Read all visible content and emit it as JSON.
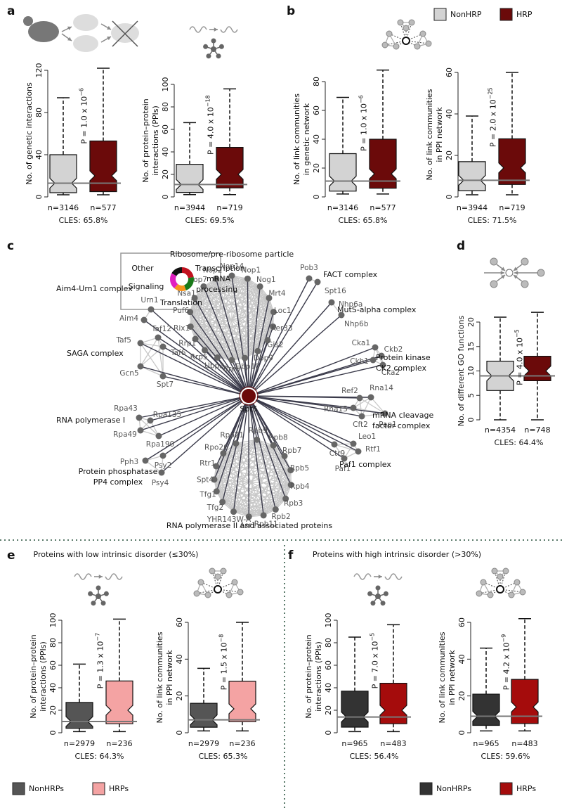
{
  "panel_letters": [
    "a",
    "b",
    "c",
    "d",
    "e",
    "f"
  ],
  "panel_titles": [
    "Proteins with low intrinsic disorder (≤30%)",
    "Proteins with high intrinsic disorder (>30%)"
  ],
  "legends": [
    {
      "items": [
        {
          "label": "NonHRP",
          "color": "#d3d3d3"
        },
        {
          "label": "HRP",
          "color": "#6b0a0a"
        }
      ]
    },
    {
      "items": [
        {
          "label": "NonHRPs",
          "color": "#555555"
        },
        {
          "label": "HRPs",
          "color": "#f4a3a3"
        }
      ]
    },
    {
      "items": [
        {
          "label": "NonHRPs",
          "color": "#333333"
        },
        {
          "label": "HRPs",
          "color": "#a50c0c"
        }
      ]
    }
  ],
  "chart_data": [
    {
      "type": "box",
      "ylabel": [
        "No. of genetic interactions"
      ],
      "ylim": [
        0,
        120
      ],
      "yticks": [
        0,
        40,
        80,
        120
      ],
      "categories": [
        "n=3146",
        "n=577"
      ],
      "boxes": [
        {
          "color": "#d3d3d3",
          "whislo": 2,
          "q1": 4,
          "med": 13,
          "q3": 40,
          "whishi": 94
        },
        {
          "color": "#6b0a0a",
          "whislo": 2,
          "q1": 5,
          "med": 20,
          "q3": 53,
          "whishi": 122
        }
      ],
      "p_value": {
        "text": "P = 1.0 x 10",
        "exponent": "−6"
      },
      "footer": "CLES: 65.8%"
    },
    {
      "type": "box",
      "ylabel": [
        "No. of protein–protein",
        "interactions (PPIs)"
      ],
      "ylim": [
        0,
        100
      ],
      "yticks": [
        0,
        20,
        40,
        60,
        80,
        100
      ],
      "categories": [
        "n=3944",
        "n=719"
      ],
      "boxes": [
        {
          "color": "#d3d3d3",
          "whislo": 2,
          "q1": 4,
          "med": 11,
          "q3": 29,
          "whishi": 66
        },
        {
          "color": "#6b0a0a",
          "whislo": 2,
          "q1": 8,
          "med": 20,
          "q3": 44,
          "whishi": 96
        }
      ],
      "p_value": {
        "text": "P = 4.0 x 10",
        "exponent": "−18"
      },
      "footer": "CLES: 69.5%"
    },
    {
      "type": "box",
      "ylabel": [
        "No. of link communities",
        "in genetic network"
      ],
      "ylim": [
        0,
        80
      ],
      "yticks": [
        0,
        20,
        40,
        60,
        80
      ],
      "categories": [
        "n=3146",
        "n=577"
      ],
      "boxes": [
        {
          "color": "#d3d3d3",
          "whislo": 2,
          "q1": 4,
          "med": 11,
          "q3": 30,
          "whishi": 69
        },
        {
          "color": "#6b0a0a",
          "whislo": 2,
          "q1": 6,
          "med": 16,
          "q3": 40,
          "whishi": 88
        }
      ],
      "p_value": {
        "text": "P = 1.0 x 10",
        "exponent": "−6"
      },
      "footer": "CLES: 65.8%"
    },
    {
      "type": "box",
      "ylabel": [
        "No. of link communities",
        "in PPI network"
      ],
      "ylim": [
        0,
        60
      ],
      "yticks": [
        0,
        20,
        40,
        60
      ],
      "categories": [
        "n=3944",
        "n=719"
      ],
      "boxes": [
        {
          "color": "#d3d3d3",
          "whislo": 1,
          "q1": 3,
          "med": 8,
          "q3": 17,
          "whishi": 39
        },
        {
          "color": "#6b0a0a",
          "whislo": 1,
          "q1": 6,
          "med": 14,
          "q3": 28,
          "whishi": 60
        }
      ],
      "p_value": {
        "text": "P = 2.0 x 10",
        "exponent": "−25"
      },
      "footer": "CLES: 71.5%"
    },
    {
      "type": "box",
      "ylabel": [
        "No. of different GO functions"
      ],
      "ylim": [
        0,
        20
      ],
      "yticks": [
        0,
        5,
        10,
        15,
        20
      ],
      "categories": [
        "n=4354",
        "n=748"
      ],
      "boxes": [
        {
          "color": "#d3d3d3",
          "whislo": 0,
          "q1": 6,
          "med": 9,
          "q3": 12,
          "whishi": 21
        },
        {
          "color": "#6b0a0a",
          "whislo": 0,
          "q1": 8,
          "med": 10,
          "q3": 13,
          "whishi": 22
        }
      ],
      "p_value": {
        "text": "P = 4.0 x 10",
        "exponent": "−5"
      },
      "footer": "CLES: 64.4%"
    },
    {
      "type": "box",
      "ylabel": [
        "No. of protein–protein",
        "interactions (PPIs)"
      ],
      "ylim": [
        0,
        100
      ],
      "yticks": [
        0,
        20,
        40,
        60,
        80,
        100
      ],
      "categories": [
        "n=2979",
        "n=236"
      ],
      "boxes": [
        {
          "color": "#555555",
          "whislo": 1,
          "q1": 4,
          "med": 10,
          "q3": 27,
          "whishi": 61
        },
        {
          "color": "#f4a3a3",
          "whislo": 1,
          "q1": 8,
          "med": 20,
          "q3": 46,
          "whishi": 101
        }
      ],
      "p_value": {
        "text": "P = 1.3 x 10",
        "exponent": "−7"
      },
      "footer": "CLES: 64.3%"
    },
    {
      "type": "box",
      "ylabel": [
        "No. of link communities",
        "in PPI network"
      ],
      "ylim": [
        0,
        60
      ],
      "yticks": [
        0,
        20,
        40,
        60
      ],
      "categories": [
        "n=2979",
        "n=236"
      ],
      "boxes": [
        {
          "color": "#555555",
          "whislo": 1,
          "q1": 3,
          "med": 7,
          "q3": 16,
          "whishi": 35
        },
        {
          "color": "#f4a3a3",
          "whislo": 1,
          "q1": 6,
          "med": 13,
          "q3": 28,
          "whishi": 60
        }
      ],
      "p_value": {
        "text": "P = 1.5 x 10",
        "exponent": "−8"
      },
      "footer": "CLES: 65.3%"
    },
    {
      "type": "box",
      "ylabel": [
        "No. of protein–protein",
        "interactions (PPIs)"
      ],
      "ylim": [
        0,
        100
      ],
      "yticks": [
        0,
        20,
        40,
        60,
        80,
        100
      ],
      "categories": [
        "n=965",
        "n=483"
      ],
      "boxes": [
        {
          "color": "#333333",
          "whislo": 1,
          "q1": 5,
          "med": 14,
          "q3": 37,
          "whishi": 85
        },
        {
          "color": "#a50c0c",
          "whislo": 1,
          "q1": 8,
          "med": 20,
          "q3": 44,
          "whishi": 96
        }
      ],
      "p_value": {
        "text": "P = 7.0 x 10",
        "exponent": "−5"
      },
      "footer": "CLES: 56.4%"
    },
    {
      "type": "box",
      "ylabel": [
        "No. of link communities",
        "in PPI network"
      ],
      "ylim": [
        0,
        60
      ],
      "yticks": [
        0,
        20,
        40,
        60
      ],
      "categories": [
        "n=965",
        "n=483"
      ],
      "boxes": [
        {
          "color": "#333333",
          "whislo": 1,
          "q1": 4,
          "med": 9,
          "q3": 21,
          "whishi": 46
        },
        {
          "color": "#a50c0c",
          "whislo": 1,
          "q1": 5,
          "med": 14,
          "q3": 29,
          "whishi": 62
        }
      ],
      "p_value": {
        "text": "P = 4.2 x 10",
        "exponent": "−9"
      },
      "footer": "CLES: 59.6%"
    }
  ],
  "network": {
    "legend": [
      {
        "label": "Other",
        "color": "#111111"
      },
      {
        "label": "Transcription",
        "color": "#c1121f"
      },
      {
        "label": [
          "mRNA",
          "processing"
        ],
        "color": "#1a7a1a"
      },
      {
        "label": "Translation",
        "color": "#f7941d"
      },
      {
        "label": "Signaling",
        "color": "#e020c0"
      }
    ],
    "center": "Spt5",
    "groups": [
      {
        "label": [
          "Ribosome/pre-ribosome particle"
        ],
        "color": "#f7941d",
        "nodes": [
          "Nop14",
          "Nop1",
          "Nog1",
          "Mrt4",
          "Loc1",
          "Ker33",
          "Gis2",
          "Dbp9",
          "Dbp10",
          "Bre5",
          "Ubp3",
          "Rrp5",
          "Rrp1",
          "Rix1",
          "Puf6",
          "Nsa1",
          "Nop7",
          "Nop2"
        ]
      },
      {
        "label": [
          "FACT complex"
        ],
        "color": "#c1121f",
        "nodes": [
          "Pob3",
          "Spt16"
        ]
      },
      {
        "label": [
          "MutS-alpha complex"
        ],
        "color": "#c1121f",
        "nodes": [
          "Nhp6a",
          "Nhp6b"
        ]
      },
      {
        "label": [
          "Protein kinase",
          "CK2 complex"
        ],
        "color": "#e020c0",
        "nodes": [
          "Cka1",
          "Ckb2",
          "Ckb1",
          "Cka2"
        ]
      },
      {
        "label": [
          "mRNA cleavage",
          "factor complex"
        ],
        "color": "#1a7a1a",
        "nodes": [
          "Ref2",
          "Rna14",
          "Rna15",
          "Cft2",
          "Pap1"
        ]
      },
      {
        "label": [
          "Paf1 complex"
        ],
        "color": "#c1121f",
        "nodes": [
          "Ctr9",
          "Leo1",
          "Rtf1",
          "Paf1"
        ]
      },
      {
        "label": [
          "RNA polymerase II and associated proteins"
        ],
        "color": "#c1121f",
        "nodes": [
          "Rpb9",
          "Rpb8",
          "Rpb7",
          "Rpb5",
          "Rpb4",
          "Rpb3",
          "Rpb2",
          "Rpb11",
          "Asr1",
          "YHR143W-A",
          "Tfg2",
          "Tfg1",
          "Spt4",
          "Rtr1",
          "Rpo26",
          "Rpo21"
        ]
      },
      {
        "label": [
          "Protein phosphatase",
          "PP4 complex"
        ],
        "color": "#e020c0",
        "nodes": [
          "Pph3",
          "Psy2",
          "Psy4"
        ]
      },
      {
        "label": [
          "RNA polymerase I"
        ],
        "color": "#c1121f",
        "nodes": [
          "Rpa43",
          "Rpa135",
          "Rpa49",
          "Rpa190"
        ]
      },
      {
        "label": [
          "SAGA complex"
        ],
        "color": "#c1121f",
        "nodes": [
          "Taf12",
          "Taf5",
          "Taf6",
          "Gcn5",
          "Spt7"
        ]
      },
      {
        "label": [
          "Aim4-Urn1 complex"
        ],
        "color": "#111111",
        "nodes": [
          "Urn1",
          "Aim4"
        ]
      }
    ]
  }
}
